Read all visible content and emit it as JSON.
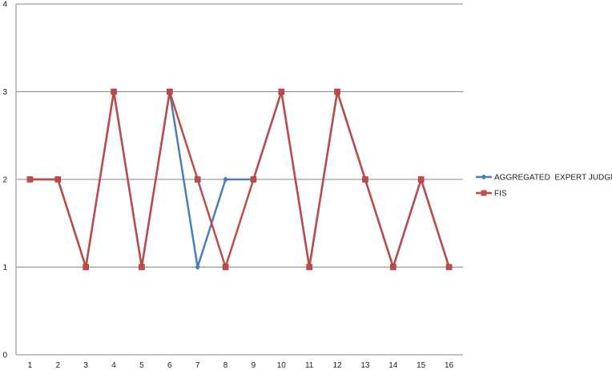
{
  "chart_data": {
    "type": "line",
    "title": "",
    "xlabel": "",
    "ylabel": "",
    "categories": [
      "1",
      "2",
      "3",
      "4",
      "5",
      "6",
      "7",
      "8",
      "9",
      "10",
      "11",
      "12",
      "13",
      "14",
      "15",
      "16"
    ],
    "ylim": [
      0,
      4
    ],
    "yticks": [
      "0",
      "1",
      "2",
      "3",
      "4"
    ],
    "grid": true,
    "legend": "right",
    "series": [
      {
        "name": "AGGREGATED  EXPERT JUDGMENT",
        "color": "#4a7ebb",
        "marker": "diamond",
        "values": [
          2,
          2,
          1,
          3,
          1,
          3,
          1,
          2,
          2,
          3,
          1,
          3,
          2,
          1,
          2,
          1
        ]
      },
      {
        "name": "FIS",
        "color": "#be4b48",
        "marker": "square",
        "values": [
          2,
          2,
          1,
          3,
          1,
          3,
          2,
          1,
          2,
          3,
          1,
          3,
          2,
          1,
          2,
          1
        ]
      }
    ]
  }
}
